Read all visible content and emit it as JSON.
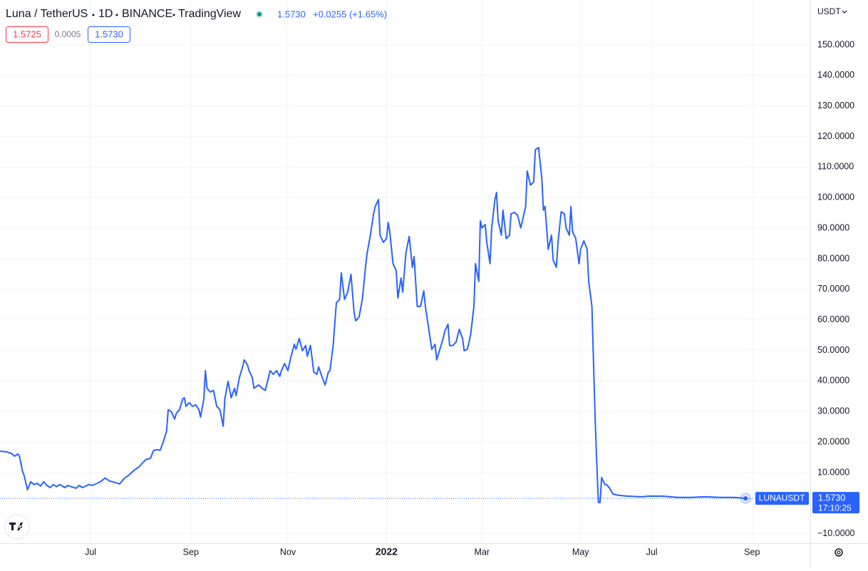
{
  "chart_data": {
    "type": "line",
    "symbol": "Luna / TetherUS",
    "interval": "1D",
    "exchange": "BINANCE",
    "source": "TradingView",
    "last_price": "1.5730",
    "change": "+0.0255 (+1.65%)",
    "bid": "1.5725",
    "spread": "0.0005",
    "ask": "1.5730",
    "currency": "USDT",
    "price_label": "1.5730",
    "countdown": "17:10:25",
    "xlim": [
      -56,
      445
    ],
    "xticks": [
      {
        "value": 0,
        "label": "Jul"
      },
      {
        "value": 62,
        "label": "Sep"
      },
      {
        "value": 122,
        "label": "Nov"
      },
      {
        "value": 183,
        "label": "2022"
      },
      {
        "value": 242,
        "label": "Mar"
      },
      {
        "value": 303,
        "label": "May"
      },
      {
        "value": 347,
        "label": "Jul"
      },
      {
        "value": 409,
        "label": "Sep"
      }
    ],
    "ylim": [
      -13.1,
      164.7
    ],
    "yticks": [
      {
        "value": -10,
        "label": "−10.0000"
      },
      {
        "value": 10,
        "label": "10.0000"
      },
      {
        "value": 20,
        "label": "20.0000"
      },
      {
        "value": 30,
        "label": "30.0000"
      },
      {
        "value": 40,
        "label": "40.0000"
      },
      {
        "value": 50,
        "label": "50.0000"
      },
      {
        "value": 60,
        "label": "60.0000"
      },
      {
        "value": 70,
        "label": "70.0000"
      },
      {
        "value": 80,
        "label": "80.0000"
      },
      {
        "value": 90,
        "label": "90.0000"
      },
      {
        "value": 100,
        "label": "100.0000"
      },
      {
        "value": 110,
        "label": "110.0000"
      },
      {
        "value": 120,
        "label": "120.0000"
      },
      {
        "value": 130,
        "label": "130.0000"
      },
      {
        "value": 140,
        "label": "140.0000"
      },
      {
        "value": 150,
        "label": "150.0000"
      }
    ],
    "grid": true,
    "series": [
      {
        "name": "LUNAUSDT",
        "color": "#2962ff",
        "x": [
          -56,
          -52,
          -49,
          -47,
          -45,
          -44,
          -42,
          -41,
          -39,
          -37,
          -35,
          -33,
          -31,
          -29,
          -27,
          -25,
          -23,
          -21,
          -19,
          -16,
          -14,
          -12,
          -9,
          -7,
          -5,
          -3,
          -1,
          1,
          4,
          6,
          9,
          12,
          15,
          18,
          21,
          23,
          26,
          28,
          30,
          32,
          34,
          37,
          39,
          41,
          43,
          45,
          47,
          48,
          50,
          52,
          53,
          55,
          57,
          58,
          59,
          61,
          63,
          65,
          67,
          68,
          70,
          71,
          72,
          74,
          76,
          78,
          80,
          82,
          83,
          85,
          87,
          89,
          90,
          92,
          94,
          95,
          97,
          98,
          100,
          101,
          104,
          106,
          108,
          110,
          111,
          113,
          115,
          117,
          118,
          120,
          122,
          124,
          126,
          127,
          129,
          131,
          133,
          134,
          136,
          138,
          140,
          141,
          143,
          145,
          147,
          148,
          150,
          152,
          154,
          155,
          157,
          159,
          161,
          163,
          164,
          166,
          168,
          170,
          171,
          173,
          175,
          176,
          178,
          179,
          181,
          183,
          184,
          185,
          187,
          189,
          190,
          192,
          193,
          195,
          197,
          199,
          200,
          202,
          204,
          206,
          207,
          209,
          211,
          213,
          214,
          216,
          218,
          219,
          221,
          222,
          224,
          226,
          228,
          230,
          231,
          233,
          235,
          237,
          238,
          240,
          241,
          242,
          244,
          245,
          247,
          248,
          250,
          251,
          252,
          254,
          255,
          257,
          259,
          260,
          262,
          264,
          266,
          267,
          269,
          270,
          272,
          274,
          275,
          277,
          279,
          280,
          281,
          283,
          285,
          286,
          288,
          289,
          291,
          293,
          294,
          296,
          297,
          298,
          300,
          302,
          303,
          305,
          307,
          308,
          310,
          311,
          312,
          313,
          314,
          315,
          316,
          318,
          319,
          321,
          323,
          326,
          332,
          341,
          345,
          354,
          363,
          371,
          380,
          389,
          398,
          405
        ],
        "values": [
          17.0,
          16.8,
          16.3,
          15.4,
          16.1,
          15.4,
          10.3,
          8.9,
          4.4,
          7.0,
          6.1,
          6.5,
          5.6,
          7.0,
          5.8,
          5.1,
          6.1,
          5.4,
          6.1,
          5.1,
          5.8,
          5.4,
          4.9,
          5.8,
          5.1,
          5.6,
          6.1,
          5.8,
          6.5,
          7.0,
          8.2,
          7.2,
          6.8,
          6.3,
          8.2,
          8.9,
          10.3,
          11.2,
          11.9,
          13.1,
          14.2,
          14.7,
          17.3,
          17.5,
          17.3,
          20.1,
          23.6,
          30.6,
          29.9,
          27.5,
          29.4,
          30.6,
          34.1,
          34.5,
          31.7,
          32.9,
          31.7,
          32.2,
          30.6,
          28.2,
          34.1,
          43.4,
          37.6,
          36.4,
          36.9,
          31.7,
          30.6,
          25.2,
          34.1,
          39.9,
          34.5,
          37.6,
          35.2,
          41.1,
          44.6,
          46.9,
          45.3,
          43.4,
          41.1,
          37.6,
          38.7,
          37.6,
          36.9,
          41.1,
          43.4,
          42.2,
          43.4,
          41.5,
          43.4,
          45.7,
          43.4,
          48.1,
          52.0,
          50.4,
          53.9,
          49.9,
          51.6,
          48.1,
          51.6,
          42.9,
          42.2,
          44.6,
          41.5,
          38.7,
          42.9,
          43.4,
          51.6,
          65.6,
          66.7,
          75.4,
          66.7,
          69.1,
          74.9,
          62.1,
          59.7,
          60.9,
          66.7,
          77.2,
          81.9,
          87.7,
          94.7,
          97.1,
          99.4,
          87.7,
          85.4,
          86.6,
          91.9,
          88.9,
          78.4,
          76.1,
          67.2,
          73.7,
          69.1,
          81.9,
          87.3,
          77.2,
          80.7,
          64.4,
          64.4,
          69.5,
          64.4,
          57.4,
          50.4,
          52.0,
          46.9,
          50.4,
          53.9,
          56.2,
          58.6,
          51.6,
          51.6,
          52.7,
          56.9,
          53.9,
          49.9,
          50.4,
          55.1,
          64.4,
          78.4,
          72.6,
          92.4,
          90.1,
          91.2,
          85.4,
          78.4,
          90.1,
          99.4,
          101.7,
          92.4,
          87.7,
          95.9,
          86.6,
          87.7,
          94.7,
          95.2,
          94.3,
          90.1,
          92.4,
          97.1,
          108.7,
          104.1,
          105.2,
          115.7,
          116.4,
          106.4,
          95.9,
          97.1,
          83.1,
          87.7,
          79.6,
          77.2,
          85.4,
          95.4,
          94.7,
          90.1,
          87.7,
          97.1,
          88.9,
          86.6,
          78.4,
          83.1,
          85.9,
          83.1,
          72.6,
          64.4,
          45.7,
          27.1,
          13.1,
          0.2,
          0.2,
          8.4,
          6.1,
          6.1,
          4.9,
          3.0,
          2.6,
          2.3,
          2.1,
          2.3,
          2.3,
          1.9,
          1.9,
          2.1,
          1.9,
          1.9,
          1.573
        ]
      }
    ]
  }
}
